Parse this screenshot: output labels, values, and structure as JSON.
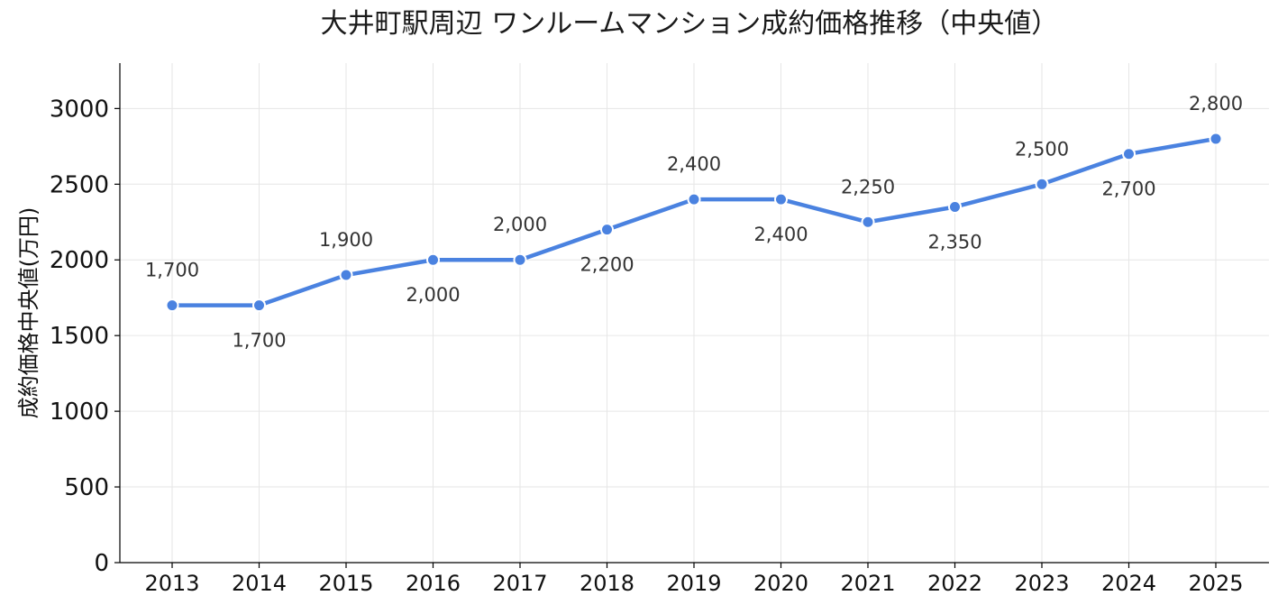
{
  "chart_data": {
    "type": "line",
    "title": "大井町駅周辺 ワンルームマンション成約価格推移（中央値）",
    "xlabel": "",
    "ylabel": "成約価格中央値(万円)",
    "x": [
      "2013",
      "2014",
      "2015",
      "2016",
      "2017",
      "2018",
      "2019",
      "2020",
      "2021",
      "2022",
      "2023",
      "2024",
      "2025"
    ],
    "series": [
      {
        "values": [
          1700,
          1700,
          1900,
          2000,
          2000,
          2200,
          2400,
          2400,
          2250,
          2350,
          2500,
          2700,
          2800
        ],
        "data_labels": [
          "1,700",
          "1,700",
          "1,900",
          "2,000",
          "2,000",
          "2,200",
          "2,400",
          "2,400",
          "2,250",
          "2,350",
          "2,500",
          "2,700",
          "2,800"
        ],
        "label_positions": [
          "above",
          "below",
          "above",
          "below",
          "above",
          "below",
          "above",
          "below",
          "above",
          "below",
          "above",
          "below",
          "above"
        ]
      }
    ],
    "yticks": [
      "0",
      "500",
      "1000",
      "1500",
      "2000",
      "2500",
      "3000"
    ],
    "ytick_values": [
      0,
      500,
      1000,
      1500,
      2000,
      2500,
      3000
    ],
    "ylim": [
      0,
      3300
    ],
    "grid": true,
    "colors": {
      "line": "#4a82e0",
      "marker_edge": "#ffffff"
    }
  }
}
